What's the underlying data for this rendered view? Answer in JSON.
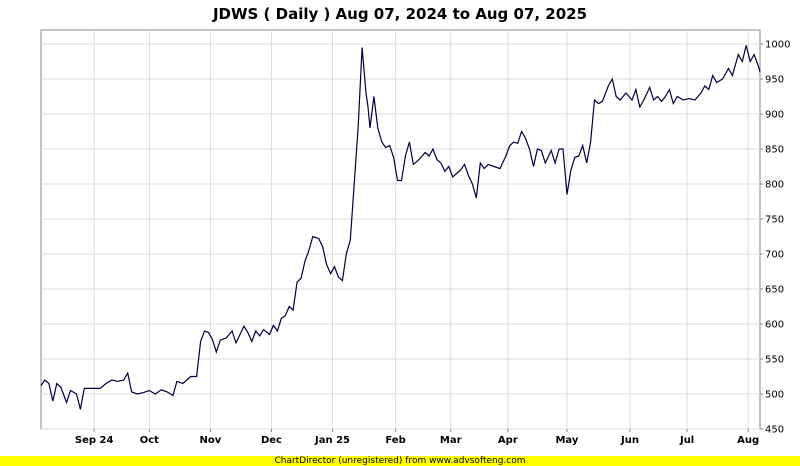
{
  "chart_data": {
    "type": "line",
    "title": "JDWS ( Daily ) Aug 07, 2024 to Aug 07, 2025",
    "xlabel": "",
    "ylabel": "",
    "ylim": [
      450,
      1020
    ],
    "y_ticks": [
      450,
      500,
      550,
      600,
      650,
      700,
      750,
      800,
      850,
      900,
      950,
      1000
    ],
    "x_ticks": [
      {
        "label": "Sep 24",
        "date": "2024-09-03"
      },
      {
        "label": "Oct",
        "date": "2024-10-01"
      },
      {
        "label": "Nov",
        "date": "2024-11-01"
      },
      {
        "label": "Dec",
        "date": "2024-12-02"
      },
      {
        "label": "Jan 25",
        "date": "2025-01-02"
      },
      {
        "label": "Feb",
        "date": "2025-02-03"
      },
      {
        "label": "Mar",
        "date": "2025-03-03"
      },
      {
        "label": "Apr",
        "date": "2025-04-01"
      },
      {
        "label": "May",
        "date": "2025-05-01"
      },
      {
        "label": "Jun",
        "date": "2025-06-02"
      },
      {
        "label": "Jul",
        "date": "2025-07-01"
      },
      {
        "label": "Aug",
        "date": "2025-08-01"
      }
    ],
    "x_range": [
      "2024-08-07",
      "2025-08-07"
    ],
    "grid": true,
    "line_color": "#000040",
    "series": [
      {
        "values": [
          [
            "2024-08-07",
            512
          ],
          [
            "2024-08-09",
            520
          ],
          [
            "2024-08-11",
            515
          ],
          [
            "2024-08-13",
            490
          ],
          [
            "2024-08-15",
            515
          ],
          [
            "2024-08-17",
            510
          ],
          [
            "2024-08-20",
            488
          ],
          [
            "2024-08-22",
            505
          ],
          [
            "2024-08-25",
            500
          ],
          [
            "2024-08-27",
            478
          ],
          [
            "2024-08-29",
            508
          ],
          [
            "2024-09-03",
            508
          ],
          [
            "2024-09-06",
            508
          ],
          [
            "2024-09-09",
            515
          ],
          [
            "2024-09-12",
            520
          ],
          [
            "2024-09-15",
            518
          ],
          [
            "2024-09-18",
            520
          ],
          [
            "2024-09-20",
            530
          ],
          [
            "2024-09-22",
            503
          ],
          [
            "2024-09-25",
            500
          ],
          [
            "2024-09-28",
            502
          ],
          [
            "2024-10-01",
            505
          ],
          [
            "2024-10-04",
            500
          ],
          [
            "2024-10-07",
            506
          ],
          [
            "2024-10-10",
            503
          ],
          [
            "2024-10-13",
            498
          ],
          [
            "2024-10-15",
            518
          ],
          [
            "2024-10-18",
            515
          ],
          [
            "2024-10-20",
            520
          ],
          [
            "2024-10-22",
            525
          ],
          [
            "2024-10-25",
            525
          ],
          [
            "2024-10-27",
            575
          ],
          [
            "2024-10-29",
            590
          ],
          [
            "2024-10-31",
            588
          ],
          [
            "2024-11-02",
            578
          ],
          [
            "2024-11-04",
            560
          ],
          [
            "2024-11-06",
            577
          ],
          [
            "2024-11-09",
            580
          ],
          [
            "2024-11-12",
            590
          ],
          [
            "2024-11-14",
            573
          ],
          [
            "2024-11-16",
            585
          ],
          [
            "2024-11-18",
            597
          ],
          [
            "2024-11-20",
            588
          ],
          [
            "2024-11-22",
            575
          ],
          [
            "2024-11-24",
            590
          ],
          [
            "2024-11-26",
            583
          ],
          [
            "2024-11-28",
            592
          ],
          [
            "2024-12-01",
            585
          ],
          [
            "2024-12-03",
            598
          ],
          [
            "2024-12-05",
            590
          ],
          [
            "2024-12-07",
            608
          ],
          [
            "2024-12-09",
            612
          ],
          [
            "2024-12-11",
            625
          ],
          [
            "2024-12-13",
            620
          ],
          [
            "2024-12-15",
            660
          ],
          [
            "2024-12-17",
            665
          ],
          [
            "2024-12-19",
            690
          ],
          [
            "2024-12-21",
            705
          ],
          [
            "2024-12-23",
            725
          ],
          [
            "2024-12-26",
            722
          ],
          [
            "2024-12-28",
            710
          ],
          [
            "2024-12-30",
            685
          ],
          [
            "2025-01-01",
            672
          ],
          [
            "2025-01-03",
            682
          ],
          [
            "2025-01-05",
            667
          ],
          [
            "2025-01-07",
            662
          ],
          [
            "2025-01-09",
            700
          ],
          [
            "2025-01-11",
            720
          ],
          [
            "2025-01-13",
            800
          ],
          [
            "2025-01-15",
            880
          ],
          [
            "2025-01-17",
            995
          ],
          [
            "2025-01-19",
            930
          ],
          [
            "2025-01-20",
            910
          ],
          [
            "2025-01-21",
            880
          ],
          [
            "2025-01-23",
            925
          ],
          [
            "2025-01-25",
            880
          ],
          [
            "2025-01-27",
            860
          ],
          [
            "2025-01-29",
            852
          ],
          [
            "2025-01-31",
            855
          ],
          [
            "2025-02-02",
            838
          ],
          [
            "2025-02-04",
            805
          ],
          [
            "2025-02-06",
            805
          ],
          [
            "2025-02-08",
            840
          ],
          [
            "2025-02-10",
            860
          ],
          [
            "2025-02-12",
            828
          ],
          [
            "2025-02-15",
            835
          ],
          [
            "2025-02-18",
            845
          ],
          [
            "2025-02-20",
            840
          ],
          [
            "2025-02-22",
            850
          ],
          [
            "2025-02-24",
            835
          ],
          [
            "2025-02-26",
            830
          ],
          [
            "2025-02-28",
            818
          ],
          [
            "2025-03-02",
            825
          ],
          [
            "2025-03-04",
            810
          ],
          [
            "2025-03-06",
            815
          ],
          [
            "2025-03-08",
            820
          ],
          [
            "2025-03-10",
            828
          ],
          [
            "2025-03-12",
            812
          ],
          [
            "2025-03-14",
            800
          ],
          [
            "2025-03-16",
            780
          ],
          [
            "2025-03-18",
            830
          ],
          [
            "2025-03-20",
            822
          ],
          [
            "2025-03-22",
            828
          ],
          [
            "2025-03-25",
            825
          ],
          [
            "2025-03-28",
            822
          ],
          [
            "2025-03-31",
            840
          ],
          [
            "2025-04-02",
            855
          ],
          [
            "2025-04-04",
            860
          ],
          [
            "2025-04-06",
            858
          ],
          [
            "2025-04-08",
            875
          ],
          [
            "2025-04-10",
            865
          ],
          [
            "2025-04-12",
            850
          ],
          [
            "2025-04-14",
            825
          ],
          [
            "2025-04-16",
            850
          ],
          [
            "2025-04-18",
            848
          ],
          [
            "2025-04-20",
            830
          ],
          [
            "2025-04-23",
            848
          ],
          [
            "2025-04-25",
            830
          ],
          [
            "2025-04-27",
            850
          ],
          [
            "2025-04-29",
            850
          ],
          [
            "2025-05-01",
            785
          ],
          [
            "2025-05-03",
            820
          ],
          [
            "2025-05-05",
            838
          ],
          [
            "2025-05-07",
            840
          ],
          [
            "2025-05-09",
            855
          ],
          [
            "2025-05-11",
            830
          ],
          [
            "2025-05-13",
            860
          ],
          [
            "2025-05-15",
            920
          ],
          [
            "2025-05-17",
            915
          ],
          [
            "2025-05-19",
            918
          ],
          [
            "2025-05-22",
            940
          ],
          [
            "2025-05-24",
            950
          ],
          [
            "2025-05-26",
            925
          ],
          [
            "2025-05-28",
            920
          ],
          [
            "2025-05-31",
            930
          ],
          [
            "2025-06-03",
            920
          ],
          [
            "2025-06-05",
            935
          ],
          [
            "2025-06-07",
            910
          ],
          [
            "2025-06-09",
            920
          ],
          [
            "2025-06-12",
            938
          ],
          [
            "2025-06-14",
            920
          ],
          [
            "2025-06-16",
            925
          ],
          [
            "2025-06-18",
            918
          ],
          [
            "2025-06-20",
            925
          ],
          [
            "2025-06-22",
            935
          ],
          [
            "2025-06-24",
            915
          ],
          [
            "2025-06-26",
            925
          ],
          [
            "2025-06-29",
            920
          ],
          [
            "2025-07-02",
            922
          ],
          [
            "2025-07-05",
            920
          ],
          [
            "2025-07-08",
            930
          ],
          [
            "2025-07-10",
            940
          ],
          [
            "2025-07-12",
            935
          ],
          [
            "2025-07-14",
            955
          ],
          [
            "2025-07-16",
            945
          ],
          [
            "2025-07-19",
            950
          ],
          [
            "2025-07-22",
            965
          ],
          [
            "2025-07-24",
            955
          ],
          [
            "2025-07-27",
            985
          ],
          [
            "2025-07-29",
            975
          ],
          [
            "2025-07-31",
            998
          ],
          [
            "2025-08-02",
            975
          ],
          [
            "2025-08-04",
            985
          ],
          [
            "2025-08-06",
            970
          ],
          [
            "2025-08-07",
            960
          ]
        ]
      }
    ]
  },
  "footer": {
    "text": "ChartDirector (unregistered) from www.advsofteng.com"
  }
}
